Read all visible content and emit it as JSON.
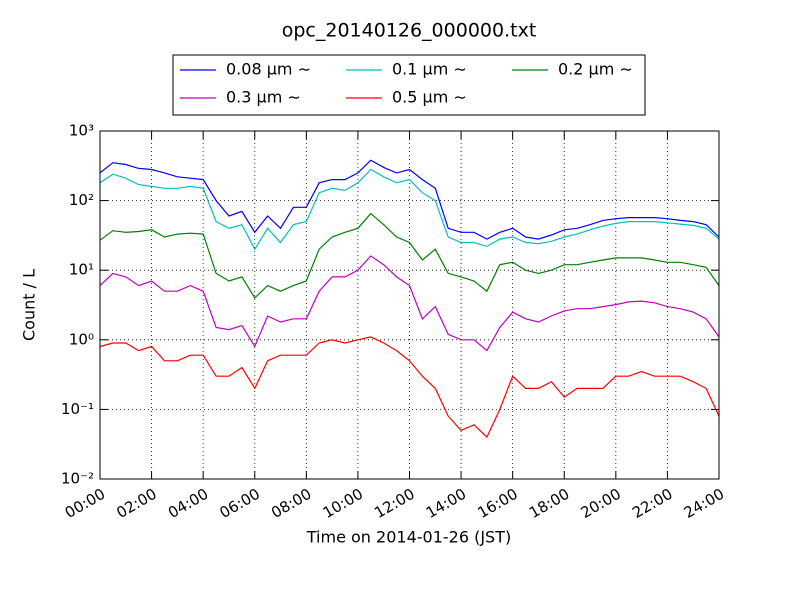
{
  "chart_data": {
    "type": "line",
    "title": "opc_20140126_000000.txt",
    "x_label": "Time on 2014-01-26 (JST)",
    "y_label": "Count / L",
    "log_y": true,
    "grid": true,
    "legend": "upper center",
    "xlim": [
      "00:00",
      "24:00"
    ],
    "xticks": [
      "00:00",
      "02:00",
      "04:00",
      "06:00",
      "08:00",
      "10:00",
      "12:00",
      "14:00",
      "16:00",
      "18:00",
      "20:00",
      "22:00",
      "24:00"
    ],
    "ylim": [
      0.01,
      1000
    ],
    "yticks": [
      {
        "value": 0.01,
        "label": "10⁻²"
      },
      {
        "value": 0.1,
        "label": "10⁻¹"
      },
      {
        "value": 1,
        "label": "10⁰"
      },
      {
        "value": 10,
        "label": "10¹"
      },
      {
        "value": 100,
        "label": "10²"
      },
      {
        "value": 1000,
        "label": "10³"
      }
    ],
    "x": [
      "00:00",
      "00:30",
      "01:00",
      "01:30",
      "02:00",
      "02:30",
      "03:00",
      "03:30",
      "04:00",
      "04:30",
      "05:00",
      "05:30",
      "06:00",
      "06:30",
      "07:00",
      "07:30",
      "08:00",
      "08:30",
      "09:00",
      "09:30",
      "10:00",
      "10:30",
      "11:00",
      "11:30",
      "12:00",
      "12:30",
      "13:00",
      "13:30",
      "14:00",
      "14:30",
      "15:00",
      "15:30",
      "16:00",
      "16:30",
      "17:00",
      "17:30",
      "18:00",
      "18:30",
      "19:00",
      "19:30",
      "20:00",
      "20:30",
      "21:00",
      "21:30",
      "22:00",
      "22:30",
      "23:00",
      "23:30",
      "24:00"
    ],
    "series": [
      {
        "name": "0.08 μm ∼",
        "color": "#0000ff",
        "values": [
          250,
          350,
          330,
          290,
          280,
          250,
          220,
          210,
          200,
          100,
          60,
          70,
          35,
          60,
          40,
          80,
          80,
          180,
          200,
          200,
          250,
          380,
          300,
          250,
          280,
          200,
          150,
          40,
          35,
          35,
          28,
          35,
          40,
          30,
          28,
          32,
          38,
          40,
          45,
          52,
          55,
          57,
          57,
          57,
          55,
          52,
          50,
          45,
          30
        ]
      },
      {
        "name": "0.1 μm ∼",
        "color": "#00bfbf",
        "values": [
          180,
          240,
          210,
          170,
          160,
          150,
          150,
          160,
          150,
          50,
          40,
          45,
          20,
          40,
          25,
          45,
          50,
          130,
          150,
          140,
          180,
          280,
          220,
          180,
          200,
          130,
          100,
          30,
          25,
          25,
          22,
          28,
          30,
          25,
          24,
          26,
          30,
          33,
          38,
          43,
          47,
          50,
          50,
          50,
          48,
          46,
          44,
          40,
          28
        ]
      },
      {
        "name": "0.2 μm ∼",
        "color": "#007f00",
        "values": [
          27,
          37,
          35,
          36,
          38,
          30,
          33,
          34,
          33,
          9,
          7,
          8,
          4,
          6,
          5,
          6,
          7,
          20,
          30,
          35,
          40,
          65,
          45,
          30,
          25,
          14,
          20,
          9,
          8,
          7,
          5,
          12,
          13,
          10,
          9,
          10,
          12,
          12,
          13,
          14,
          15,
          15,
          15,
          14,
          13,
          13,
          12,
          11,
          6
        ]
      },
      {
        "name": "0.3 μm ∼",
        "color": "#bf00bf",
        "values": [
          6,
          9,
          8,
          6,
          7,
          5,
          5,
          6,
          5,
          1.5,
          1.4,
          1.6,
          0.8,
          2.2,
          1.8,
          2,
          2,
          5,
          8,
          8,
          10,
          16,
          12,
          8,
          6,
          2,
          3,
          1.2,
          1,
          1,
          0.7,
          1.5,
          2.5,
          2,
          1.8,
          2.2,
          2.6,
          2.8,
          2.8,
          3,
          3.2,
          3.5,
          3.6,
          3.4,
          3,
          2.8,
          2.5,
          2,
          1.1
        ]
      },
      {
        "name": "0.5 μm ∼",
        "color": "#ff0000",
        "values": [
          0.8,
          0.9,
          0.9,
          0.7,
          0.8,
          0.5,
          0.5,
          0.6,
          0.6,
          0.3,
          0.3,
          0.4,
          0.2,
          0.5,
          0.6,
          0.6,
          0.6,
          0.9,
          1,
          0.9,
          1,
          1.1,
          0.9,
          0.7,
          0.5,
          0.3,
          0.2,
          0.08,
          0.05,
          0.06,
          0.04,
          0.1,
          0.3,
          0.2,
          0.2,
          0.25,
          0.15,
          0.2,
          0.2,
          0.2,
          0.3,
          0.3,
          0.35,
          0.3,
          0.3,
          0.3,
          0.25,
          0.2,
          0.08
        ]
      }
    ]
  }
}
